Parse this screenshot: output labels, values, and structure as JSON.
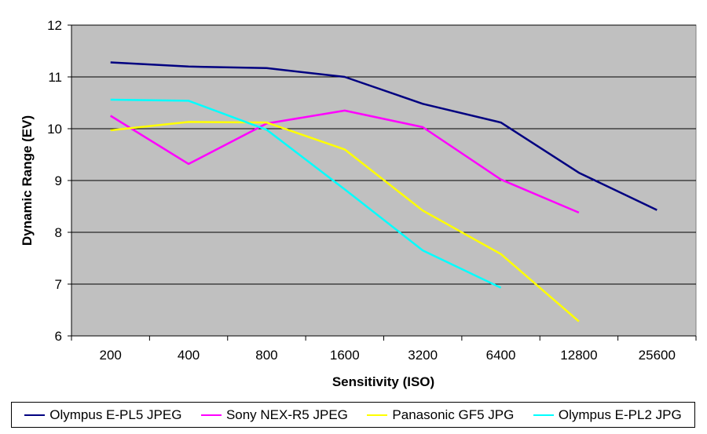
{
  "chart_data": {
    "type": "line",
    "xlabel": "Sensitivity (ISO)",
    "ylabel": "Dynamic Range (EV)",
    "categories": [
      "200",
      "400",
      "800",
      "1600",
      "3200",
      "6400",
      "12800",
      "25600"
    ],
    "ylim": [
      6,
      12
    ],
    "yticks": [
      6,
      7,
      8,
      9,
      10,
      11,
      12
    ],
    "grid": "horizontal",
    "legend_position": "bottom",
    "plot_background": "#c0c0c0",
    "series": [
      {
        "name": "Olympus E-PL5 JPEG",
        "color": "#000080",
        "values": [
          11.28,
          11.2,
          11.17,
          11.0,
          10.48,
          10.12,
          9.15,
          8.43
        ]
      },
      {
        "name": "Sony NEX-R5 JPEG",
        "color": "#ff00ff",
        "values": [
          10.25,
          9.32,
          10.1,
          10.35,
          10.03,
          9.02,
          8.38,
          null
        ]
      },
      {
        "name": "Panasonic GF5 JPG",
        "color": "#ffff00",
        "values": [
          9.97,
          10.13,
          10.12,
          9.6,
          8.42,
          7.58,
          6.28,
          null
        ]
      },
      {
        "name": "Olympus E-PL2 JPG",
        "color": "#00ffff",
        "values": [
          10.56,
          10.54,
          9.98,
          8.83,
          7.65,
          6.93,
          null,
          null
        ]
      }
    ]
  }
}
